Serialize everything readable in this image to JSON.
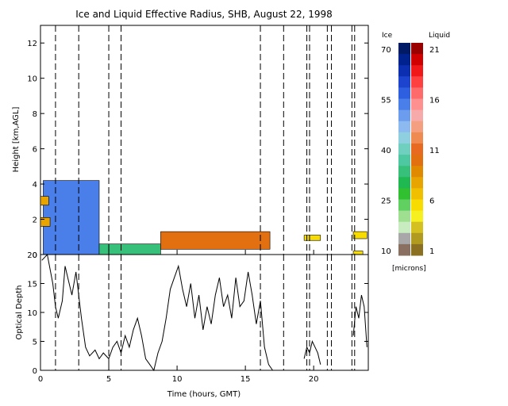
{
  "chart_data": [
    {
      "type": "heatmap",
      "title": "Ice and Liquid Effective Radius, SHB, August 22, 1998",
      "ylabel": "Height [km,AGL]",
      "xlabel": "",
      "xlim": [
        0,
        24
      ],
      "ylim": [
        0,
        13
      ],
      "yticks": [
        0,
        2,
        4,
        6,
        8,
        10,
        12
      ],
      "xticks": [
        0,
        5,
        10,
        15,
        20
      ],
      "xtick_labels": [
        "",
        "",
        "",
        "",
        ""
      ],
      "dashed_times": [
        1.1,
        2.8,
        5.0,
        5.9,
        16.1,
        17.8,
        19.5,
        19.7,
        21.0,
        21.3,
        22.8,
        23.0
      ],
      "cloud_regions": [
        {
          "phase": "ice",
          "t_start": 0.2,
          "t_end": 4.3,
          "top_km": 4.2,
          "base_km": 0.0,
          "radius_um": 52
        },
        {
          "phase": "ice",
          "t_start": 4.3,
          "t_end": 8.8,
          "top_km": 0.6,
          "base_km": 0.0,
          "radius_um": 35
        },
        {
          "phase": "liquid",
          "t_start": 0.0,
          "t_end": 0.6,
          "top_km": 3.3,
          "base_km": 2.8,
          "radius_um": 8
        },
        {
          "phase": "liquid",
          "t_start": 0.0,
          "t_end": 0.7,
          "top_km": 2.1,
          "base_km": 1.6,
          "radius_um": 8
        },
        {
          "phase": "liquid",
          "t_start": 8.8,
          "t_end": 16.8,
          "top_km": 1.3,
          "base_km": 0.3,
          "radius_um": 10
        },
        {
          "phase": "liquid",
          "t_start": 19.3,
          "t_end": 20.5,
          "top_km": 1.1,
          "base_km": 0.8,
          "radius_um": 6
        },
        {
          "phase": "liquid",
          "t_start": 22.9,
          "t_end": 23.9,
          "top_km": 1.3,
          "base_km": 0.9,
          "radius_um": 6
        },
        {
          "phase": "liquid",
          "t_start": 22.9,
          "t_end": 23.6,
          "top_km": 0.2,
          "base_km": 0.0,
          "radius_um": 6
        }
      ],
      "colorbar": {
        "ice_label": "Ice",
        "liquid_label": "Liquid",
        "ice_ticks": [
          "70",
          "55",
          "40",
          "25",
          "10"
        ],
        "liquid_ticks": [
          "21",
          "16",
          "11",
          "6",
          "1"
        ],
        "units": "[microns]",
        "ice_colors": [
          "#001a66",
          "#00228e",
          "#0b2fb0",
          "#1c44cf",
          "#2e5fe0",
          "#4a7ee8",
          "#6b9cee",
          "#8cbaf0",
          "#8fd0e0",
          "#6fd0c0",
          "#4ec8a0",
          "#36c07a",
          "#20b850",
          "#30c030",
          "#60d060",
          "#9ee090",
          "#c8ecc0",
          "#a8a8a8",
          "#8a7060"
        ],
        "liquid_colors": [
          "#9a0000",
          "#d00000",
          "#f01818",
          "#ff4040",
          "#ff6a6a",
          "#ff9090",
          "#f6aaaa",
          "#f4a080",
          "#ef8a50",
          "#e86a20",
          "#e27010",
          "#e08a00",
          "#e8a400",
          "#f0c000",
          "#f8dc00",
          "#f6f020",
          "#d4c020",
          "#b09a20",
          "#8a7020"
        ]
      }
    },
    {
      "type": "line",
      "xlabel": "Time (hours, GMT)",
      "ylabel": "Optical Depth",
      "xlim": [
        0,
        24
      ],
      "ylim": [
        0,
        20
      ],
      "yticks": [
        0,
        5,
        10,
        15,
        20
      ],
      "xticks": [
        0,
        5,
        10,
        15,
        20
      ],
      "x": [
        0.1,
        0.5,
        0.9,
        1.1,
        1.3,
        1.6,
        1.8,
        2.0,
        2.3,
        2.6,
        3.0,
        3.3,
        3.6,
        4.0,
        4.3,
        4.6,
        5.0,
        5.3,
        5.6,
        5.9,
        6.2,
        6.5,
        6.8,
        7.1,
        7.4,
        7.7,
        8.0,
        8.3,
        8.6,
        8.9,
        9.2,
        9.5,
        9.8,
        10.1,
        10.4,
        10.7,
        11.0,
        11.3,
        11.6,
        11.9,
        12.2,
        12.5,
        12.8,
        13.1,
        13.4,
        13.7,
        14.0,
        14.3,
        14.6,
        14.9,
        15.2,
        15.5,
        15.8,
        16.1,
        16.4,
        16.7,
        17.0,
        19.3,
        19.5,
        19.7,
        19.9,
        20.1,
        20.3,
        20.5,
        22.9,
        23.1,
        23.3,
        23.5,
        23.7,
        23.9
      ],
      "y": [
        19,
        20,
        15,
        11,
        9,
        12,
        18,
        16,
        13,
        17,
        9,
        4,
        2.5,
        3.5,
        2,
        3,
        2,
        4,
        5,
        3,
        6,
        4,
        7,
        9,
        6,
        2,
        1,
        0,
        3,
        5,
        9,
        14,
        16,
        18,
        14,
        11,
        15,
        9,
        13,
        7,
        11,
        8,
        13,
        16,
        11,
        13,
        9,
        16,
        11,
        12,
        17,
        13,
        8,
        12,
        4,
        1,
        0,
        2,
        4,
        3,
        5,
        4,
        3,
        1,
        6,
        11,
        9,
        13,
        11,
        4
      ]
    }
  ]
}
